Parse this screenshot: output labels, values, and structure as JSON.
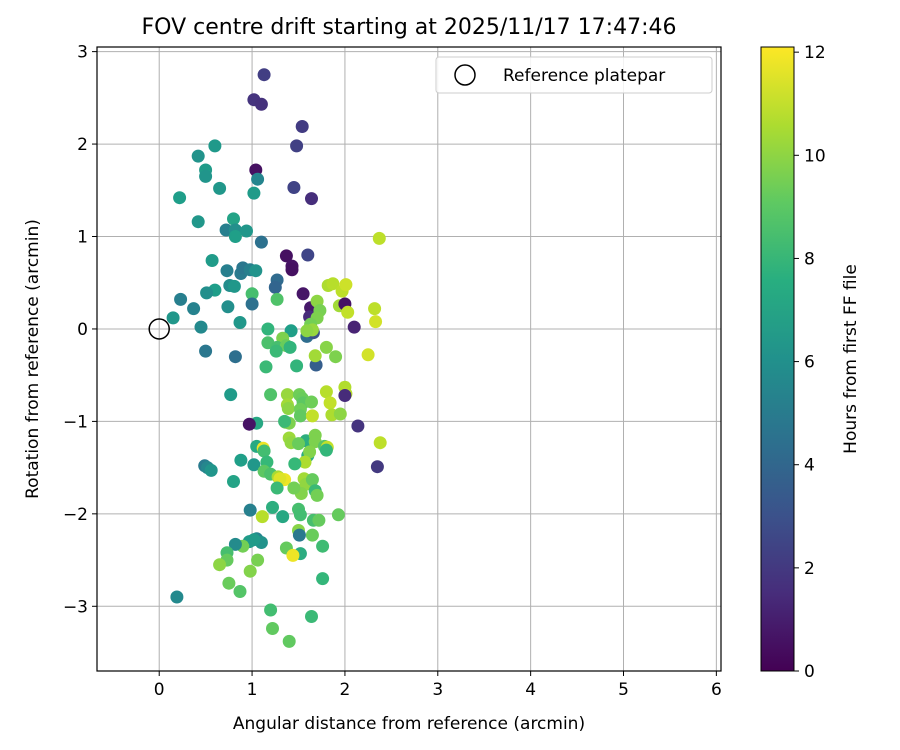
{
  "chart_data": {
    "type": "scatter",
    "title": "FOV centre drift starting at 2025/11/17 17:47:46",
    "xlabel": "Angular distance from reference (arcmin)",
    "ylabel": "Rotation from reference (arcmin)",
    "xlim": [
      -0.67,
      6.05
    ],
    "ylim": [
      -3.7,
      3.05
    ],
    "xticks": [
      0,
      1,
      2,
      3,
      4,
      5,
      6
    ],
    "yticks": [
      -3,
      -2,
      -1,
      0,
      1,
      2,
      3
    ],
    "grid": true,
    "legend": {
      "placement": "top-right",
      "label": "Reference platepar"
    },
    "reference_point": {
      "x": 0,
      "y": 0
    },
    "colorbar": {
      "label": "Hours from first FF file",
      "range": [
        0,
        12.1
      ],
      "ticks": [
        0,
        2,
        4,
        6,
        8,
        10,
        12
      ],
      "colormap": "viridis"
    },
    "points": [
      [
        1.13,
        2.75,
        2.2
      ],
      [
        1.02,
        2.48,
        1.8
      ],
      [
        1.1,
        2.43,
        1.7
      ],
      [
        1.54,
        2.19,
        2.1
      ],
      [
        1.48,
        1.98,
        2.3
      ],
      [
        1.04,
        1.72,
        0.5
      ],
      [
        1.06,
        1.62,
        5.5
      ],
      [
        1.45,
        1.53,
        2.4
      ],
      [
        1.64,
        1.41,
        1.6
      ],
      [
        0.42,
        1.87,
        6.2
      ],
      [
        0.6,
        1.98,
        6.5
      ],
      [
        0.5,
        1.72,
        6.6
      ],
      [
        0.5,
        1.65,
        6.3
      ],
      [
        0.65,
        1.52,
        6.4
      ],
      [
        1.02,
        1.47,
        6.6
      ],
      [
        0.22,
        1.42,
        6.7
      ],
      [
        0.42,
        1.16,
        6.4
      ],
      [
        0.8,
        1.19,
        7.0
      ],
      [
        0.72,
        1.07,
        5.2
      ],
      [
        0.82,
        1.07,
        6.0
      ],
      [
        0.94,
        1.06,
        6.4
      ],
      [
        0.82,
        1.0,
        6.8
      ],
      [
        1.1,
        0.94,
        4.5
      ],
      [
        0.57,
        0.74,
        6.6
      ],
      [
        1.37,
        0.79,
        0.5
      ],
      [
        1.6,
        0.8,
        2.5
      ],
      [
        1.43,
        0.68,
        0.6
      ],
      [
        1.43,
        0.64,
        0.5
      ],
      [
        0.73,
        0.63,
        5.2
      ],
      [
        0.88,
        0.6,
        5.0
      ],
      [
        0.9,
        0.66,
        4.8
      ],
      [
        0.98,
        0.64,
        5.3
      ],
      [
        1.04,
        0.63,
        6.2
      ],
      [
        1.27,
        0.53,
        4.2
      ],
      [
        1.25,
        0.45,
        3.9
      ],
      [
        0.76,
        0.47,
        5.9
      ],
      [
        0.81,
        0.46,
        6.4
      ],
      [
        0.6,
        0.42,
        6.7
      ],
      [
        0.51,
        0.39,
        6.0
      ],
      [
        1.0,
        0.38,
        8.5
      ],
      [
        1.55,
        0.38,
        0.7
      ],
      [
        1.27,
        0.32,
        8.7
      ],
      [
        0.23,
        0.32,
        5.2
      ],
      [
        0.37,
        0.22,
        5.4
      ],
      [
        1.0,
        0.27,
        4.5
      ],
      [
        0.74,
        0.24,
        6.0
      ],
      [
        0.15,
        0.12,
        6.4
      ],
      [
        0.87,
        0.07,
        6.4
      ],
      [
        1.63,
        0.23,
        0.8
      ],
      [
        1.62,
        0.13,
        1.5
      ],
      [
        1.7,
        0.3,
        10.0
      ],
      [
        1.73,
        0.2,
        9.6
      ],
      [
        1.7,
        0.12,
        9.7
      ],
      [
        1.63,
        0.05,
        9.5
      ],
      [
        1.82,
        0.47,
        10.6
      ],
      [
        1.87,
        0.49,
        10.8
      ],
      [
        1.97,
        0.41,
        10.9
      ],
      [
        2.01,
        0.48,
        11.2
      ],
      [
        1.94,
        0.25,
        10.4
      ],
      [
        2.0,
        0.27,
        0.6
      ],
      [
        2.03,
        0.18,
        11.0
      ],
      [
        2.1,
        0.02,
        1.2
      ],
      [
        2.32,
        0.22,
        10.9
      ],
      [
        2.33,
        0.08,
        11.3
      ],
      [
        2.37,
        0.98,
        10.9
      ],
      [
        0.45,
        0.02,
        5.7
      ],
      [
        1.17,
        0.0,
        7.9
      ],
      [
        1.42,
        -0.02,
        6.8
      ],
      [
        1.59,
        -0.08,
        4.3
      ],
      [
        1.66,
        -0.04,
        3.0
      ],
      [
        1.69,
        -0.39,
        3.6
      ],
      [
        1.65,
        -0.01,
        10.2
      ],
      [
        1.59,
        -0.02,
        10.0
      ],
      [
        1.33,
        -0.1,
        9.7
      ],
      [
        1.17,
        -0.15,
        8.6
      ],
      [
        1.27,
        -0.2,
        8.5
      ],
      [
        1.37,
        -0.18,
        9.3
      ],
      [
        1.26,
        -0.24,
        8.2
      ],
      [
        1.41,
        -0.2,
        7.9
      ],
      [
        0.5,
        -0.24,
        4.8
      ],
      [
        0.82,
        -0.3,
        4.4
      ],
      [
        1.68,
        -0.29,
        10.4
      ],
      [
        1.8,
        -0.2,
        9.9
      ],
      [
        1.9,
        -0.3,
        9.7
      ],
      [
        2.25,
        -0.28,
        11.3
      ],
      [
        1.48,
        -0.4,
        7.9
      ],
      [
        1.15,
        -0.41,
        8.2
      ],
      [
        0.77,
        -0.71,
        6.6
      ],
      [
        1.2,
        -0.71,
        8.7
      ],
      [
        1.38,
        -0.71,
        10.2
      ],
      [
        1.38,
        -0.82,
        10.4
      ],
      [
        1.39,
        -0.86,
        10.0
      ],
      [
        1.51,
        -0.71,
        9.4
      ],
      [
        1.54,
        -0.75,
        9.3
      ],
      [
        1.55,
        -0.8,
        9.0
      ],
      [
        1.52,
        -0.87,
        9.4
      ],
      [
        1.52,
        -0.94,
        9.1
      ],
      [
        1.64,
        -0.79,
        9.4
      ],
      [
        1.65,
        -0.94,
        11.0
      ],
      [
        1.8,
        -0.68,
        10.8
      ],
      [
        1.84,
        -0.8,
        11.0
      ],
      [
        1.86,
        -0.93,
        10.6
      ],
      [
        1.95,
        -0.92,
        10.0
      ],
      [
        2.0,
        -0.63,
        10.7
      ],
      [
        2.01,
        -0.7,
        10.8
      ],
      [
        2.0,
        -0.72,
        1.5
      ],
      [
        2.14,
        -1.05,
        1.8
      ],
      [
        1.36,
        -1.01,
        9.6
      ],
      [
        1.4,
        -1.02,
        9.7
      ],
      [
        1.35,
        -1.0,
        8.2
      ],
      [
        1.05,
        -1.02,
        7.2
      ],
      [
        0.97,
        -1.03,
        0.6
      ],
      [
        1.4,
        -1.18,
        10.3
      ],
      [
        1.42,
        -1.23,
        10.1
      ],
      [
        1.58,
        -1.21,
        7.6
      ],
      [
        1.5,
        -1.24,
        9.3
      ],
      [
        1.68,
        -1.15,
        9.7
      ],
      [
        1.68,
        -1.22,
        9.7
      ],
      [
        1.78,
        -1.27,
        8.9
      ],
      [
        1.81,
        -1.28,
        11.0
      ],
      [
        1.8,
        -1.31,
        8.0
      ],
      [
        1.05,
        -1.27,
        7.3
      ],
      [
        1.12,
        -1.29,
        11.8
      ],
      [
        1.13,
        -1.32,
        8.4
      ],
      [
        0.88,
        -1.42,
        6.8
      ],
      [
        1.02,
        -1.47,
        6.4
      ],
      [
        0.49,
        -1.48,
        5.0
      ],
      [
        0.52,
        -1.5,
        5.6
      ],
      [
        0.56,
        -1.53,
        6.3
      ],
      [
        1.16,
        -1.44,
        8.1
      ],
      [
        1.6,
        -1.37,
        7.5
      ],
      [
        1.62,
        -1.33,
        9.8
      ],
      [
        1.57,
        -1.44,
        10.6
      ],
      [
        1.46,
        -1.46,
        8.1
      ],
      [
        1.13,
        -1.54,
        9.0
      ],
      [
        1.2,
        -1.57,
        8.6
      ],
      [
        1.28,
        -1.6,
        10.5
      ],
      [
        1.33,
        -1.63,
        11.4
      ],
      [
        1.35,
        -1.63,
        11.8
      ],
      [
        1.3,
        -1.62,
        11.5
      ],
      [
        1.56,
        -1.62,
        10.4
      ],
      [
        1.58,
        -1.68,
        10.1
      ],
      [
        1.65,
        -1.63,
        9.2
      ],
      [
        1.68,
        -1.75,
        8.2
      ],
      [
        1.7,
        -1.8,
        9.5
      ],
      [
        1.53,
        -1.78,
        9.8
      ],
      [
        1.45,
        -1.72,
        9.5
      ],
      [
        1.27,
        -1.72,
        8.2
      ],
      [
        0.8,
        -1.65,
        7.0
      ],
      [
        0.98,
        -1.96,
        5.3
      ],
      [
        1.22,
        -1.93,
        7.6
      ],
      [
        1.33,
        -2.03,
        7.2
      ],
      [
        1.5,
        -1.95,
        8.5
      ],
      [
        1.52,
        -2.01,
        8.4
      ],
      [
        1.66,
        -2.07,
        8.5
      ],
      [
        1.72,
        -2.07,
        9.2
      ],
      [
        1.93,
        -2.01,
        9.2
      ],
      [
        1.11,
        -2.03,
        10.8
      ],
      [
        1.5,
        -2.18,
        9.9
      ],
      [
        1.51,
        -2.23,
        4.9
      ],
      [
        1.65,
        -2.23,
        9.3
      ],
      [
        1.76,
        -2.35,
        8.3
      ],
      [
        1.05,
        -2.27,
        5.5
      ],
      [
        1.1,
        -2.31,
        6.2
      ],
      [
        0.97,
        -2.3,
        6.6
      ],
      [
        0.9,
        -2.35,
        9.5
      ],
      [
        0.82,
        -2.33,
        5.8
      ],
      [
        0.73,
        -2.42,
        8.5
      ],
      [
        0.73,
        -2.5,
        9.2
      ],
      [
        0.65,
        -2.55,
        10.0
      ],
      [
        1.06,
        -2.5,
        9.6
      ],
      [
        1.02,
        -2.28,
        6.6
      ],
      [
        1.37,
        -2.37,
        9.2
      ],
      [
        1.52,
        -2.43,
        7.5
      ],
      [
        1.44,
        -2.45,
        11.8
      ],
      [
        0.98,
        -2.62,
        9.8
      ],
      [
        0.75,
        -2.75,
        9.3
      ],
      [
        0.87,
        -2.84,
        8.8
      ],
      [
        0.19,
        -2.9,
        5.7
      ],
      [
        1.76,
        -2.7,
        8.0
      ],
      [
        1.2,
        -3.04,
        8.4
      ],
      [
        1.22,
        -3.24,
        9.1
      ],
      [
        1.64,
        -3.11,
        8.2
      ],
      [
        1.4,
        -3.38,
        9.1
      ],
      [
        2.35,
        -1.49,
        2.0
      ],
      [
        2.38,
        -1.23,
        10.9
      ]
    ]
  }
}
